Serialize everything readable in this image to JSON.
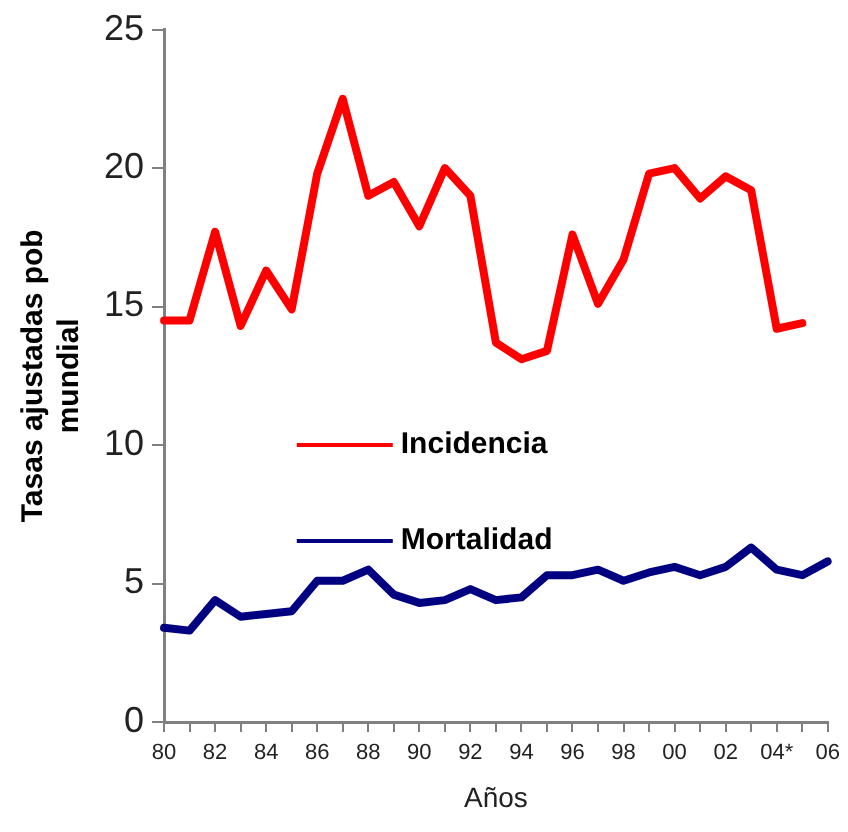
{
  "chart_data": {
    "type": "line",
    "xlabel": "Años",
    "ylabel": "Tasas ajustadas pob mundial",
    "categories": [
      "80",
      null,
      "82",
      null,
      "84",
      null,
      "86",
      null,
      "88",
      null,
      "90",
      null,
      "92",
      null,
      "94",
      null,
      "96",
      null,
      "98",
      null,
      "00",
      null,
      "02",
      null,
      "04*",
      null,
      "06"
    ],
    "series": [
      {
        "name": "Incidencia",
        "color": "#ff0000",
        "values": [
          14.5,
          14.5,
          17.7,
          14.3,
          16.3,
          14.9,
          19.8,
          22.5,
          19.0,
          19.5,
          17.9,
          20.0,
          19.0,
          13.7,
          13.1,
          13.4,
          17.6,
          15.1,
          16.7,
          19.8,
          20.0,
          18.9,
          19.7,
          19.2,
          14.2,
          14.4,
          null
        ]
      },
      {
        "name": "Mortalidad",
        "color": "#000080",
        "values": [
          3.4,
          3.3,
          4.4,
          3.8,
          3.9,
          4.0,
          5.1,
          5.1,
          5.5,
          4.6,
          4.3,
          4.4,
          4.8,
          4.4,
          4.5,
          5.3,
          5.3,
          5.5,
          5.1,
          5.4,
          5.6,
          5.3,
          5.6,
          6.3,
          5.5,
          5.3,
          5.8
        ]
      }
    ],
    "ylim": [
      0,
      25
    ],
    "yticks": [
      0,
      5,
      10,
      15,
      20,
      25
    ],
    "grid": false,
    "legend": "center",
    "marker": "none",
    "line_style": "solid"
  }
}
